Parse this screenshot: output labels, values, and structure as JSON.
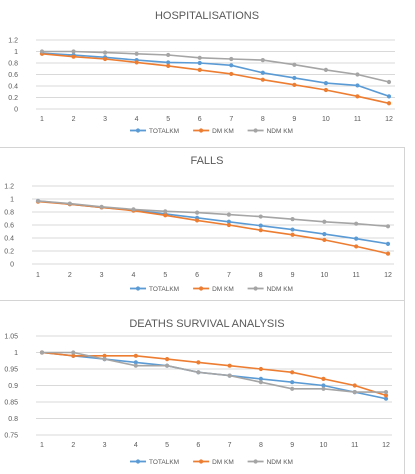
{
  "chart_data": [
    {
      "type": "line",
      "title": "HOSPITALISATIONS",
      "x": [
        1,
        2,
        3,
        4,
        5,
        6,
        7,
        8,
        9,
        10,
        11,
        12
      ],
      "ylim": [
        0,
        1.2
      ],
      "yticks": [
        "0",
        "0.2",
        "0.4",
        "0.6",
        "0.8",
        "1",
        "1.2"
      ],
      "grid": true,
      "legend": "bottom",
      "series": [
        {
          "name": "TOTALKM",
          "color": "#5B9BD5",
          "values": [
            0.97,
            0.94,
            0.9,
            0.85,
            0.81,
            0.8,
            0.76,
            0.63,
            0.54,
            0.45,
            0.41,
            0.22
          ]
        },
        {
          "name": "DM KM",
          "color": "#ED7D31",
          "values": [
            0.96,
            0.91,
            0.87,
            0.81,
            0.75,
            0.68,
            0.61,
            0.51,
            0.42,
            0.33,
            0.22,
            0.1
          ]
        },
        {
          "name": "NDM KM",
          "color": "#A5A5A5",
          "values": [
            1.0,
            1.0,
            0.98,
            0.96,
            0.94,
            0.89,
            0.87,
            0.85,
            0.77,
            0.68,
            0.6,
            0.47
          ]
        }
      ]
    },
    {
      "type": "line",
      "title": "FALLS",
      "x": [
        1,
        2,
        3,
        4,
        5,
        6,
        7,
        8,
        9,
        10,
        11,
        12
      ],
      "ylim": [
        0,
        1.2
      ],
      "yticks": [
        "0",
        "0.2",
        "0.4",
        "0.6",
        "0.8",
        "1",
        "1.2"
      ],
      "grid": true,
      "legend": "bottom",
      "series": [
        {
          "name": "TOTALKM",
          "color": "#5B9BD5",
          "values": [
            0.97,
            0.92,
            0.87,
            0.83,
            0.77,
            0.71,
            0.65,
            0.59,
            0.53,
            0.46,
            0.39,
            0.31
          ]
        },
        {
          "name": "DM KM",
          "color": "#ED7D31",
          "values": [
            0.96,
            0.92,
            0.87,
            0.82,
            0.75,
            0.67,
            0.6,
            0.52,
            0.45,
            0.37,
            0.27,
            0.16
          ]
        },
        {
          "name": "NDM KM",
          "color": "#A5A5A5",
          "values": [
            0.97,
            0.93,
            0.88,
            0.84,
            0.81,
            0.79,
            0.76,
            0.73,
            0.69,
            0.65,
            0.62,
            0.58
          ]
        }
      ]
    },
    {
      "type": "line",
      "title": "DEATHS SURVIVAL ANALYSIS",
      "x": [
        1,
        2,
        3,
        4,
        5,
        6,
        7,
        8,
        9,
        10,
        11,
        12
      ],
      "ylim": [
        0.75,
        1.05
      ],
      "yticks": [
        "0.75",
        "0.8",
        "0.85",
        "0.9",
        "0.95",
        "1",
        "1.05"
      ],
      "grid": true,
      "legend": "bottom",
      "series": [
        {
          "name": "TOTALKM",
          "color": "#5B9BD5",
          "values": [
            1.0,
            0.99,
            0.98,
            0.97,
            0.96,
            0.94,
            0.93,
            0.92,
            0.91,
            0.9,
            0.88,
            0.86
          ]
        },
        {
          "name": "DM KM",
          "color": "#ED7D31",
          "values": [
            1.0,
            0.99,
            0.99,
            0.99,
            0.98,
            0.97,
            0.96,
            0.95,
            0.94,
            0.92,
            0.9,
            0.87
          ]
        },
        {
          "name": "NDM KM",
          "color": "#A5A5A5",
          "values": [
            1.0,
            1.0,
            0.98,
            0.96,
            0.96,
            0.94,
            0.93,
            0.91,
            0.89,
            0.89,
            0.88,
            0.88
          ]
        }
      ]
    }
  ]
}
